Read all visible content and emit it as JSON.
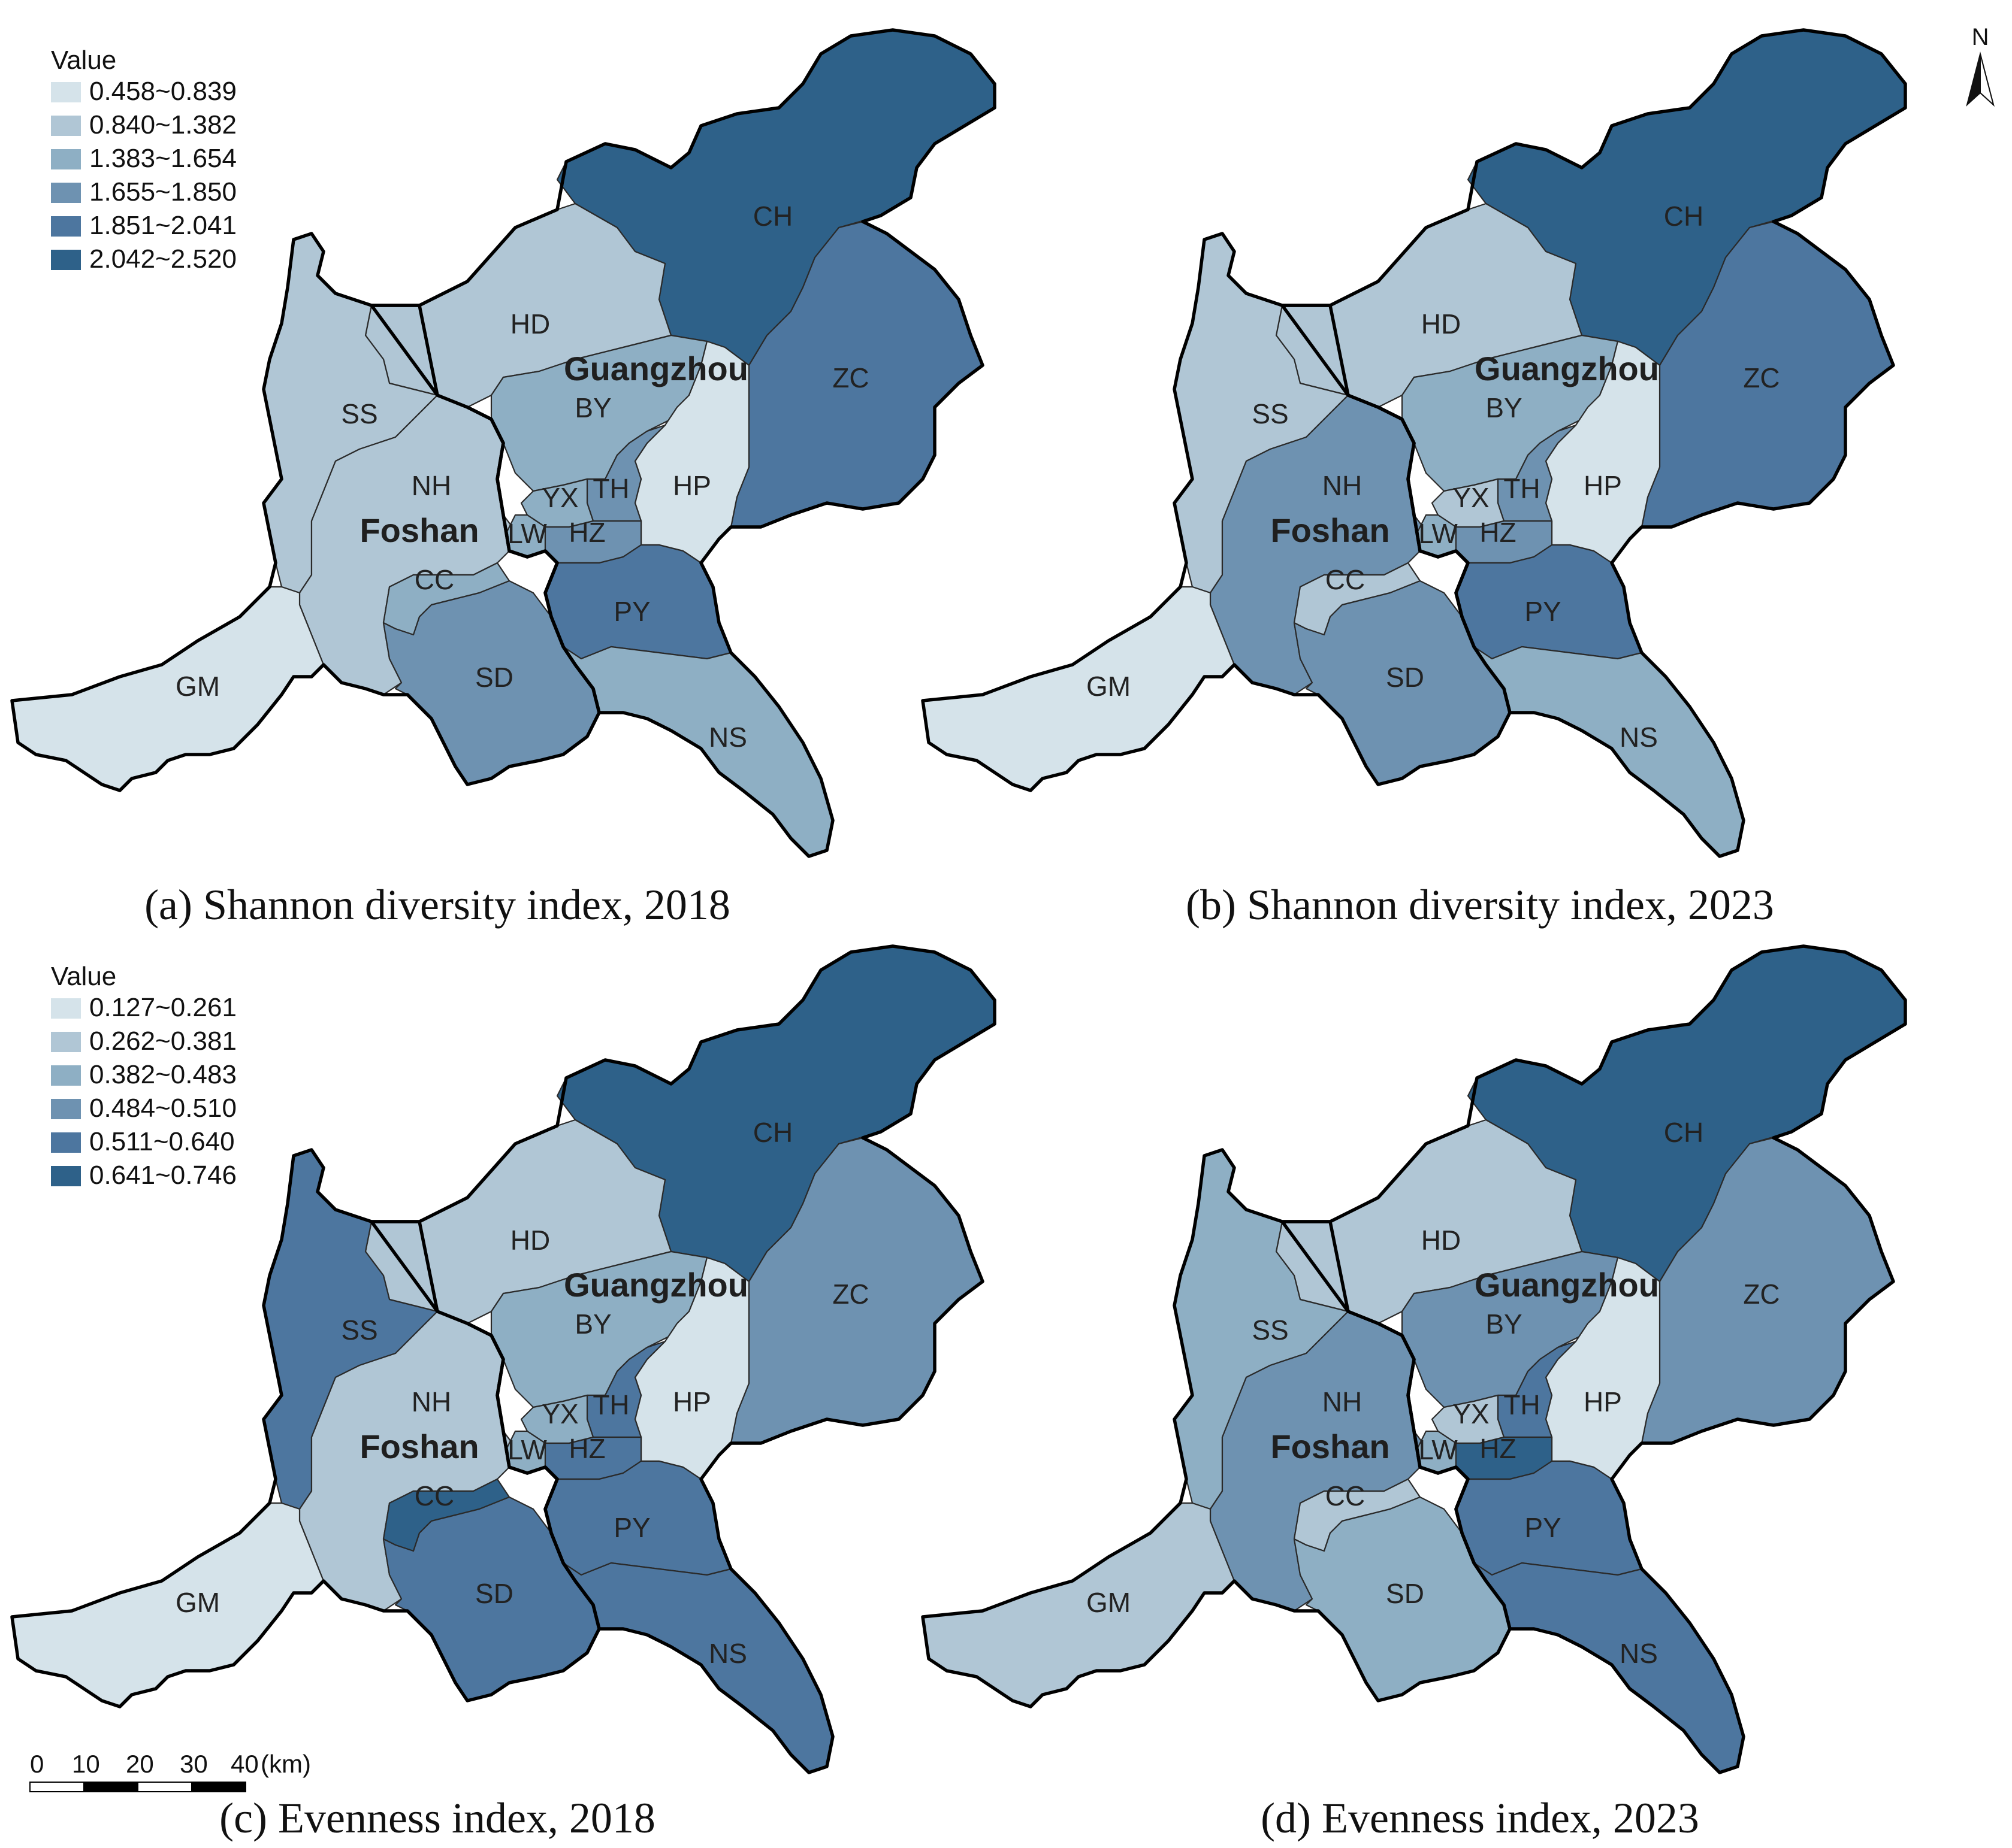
{
  "palette": [
    "#d5e3ea",
    "#b0c6d5",
    "#8eafc4",
    "#6e92b1",
    "#4d769f",
    "#2e6189"
  ],
  "legends": [
    {
      "title": "Value",
      "ranges": [
        "0.458~0.839",
        "0.840~1.382",
        "1.383~1.654",
        "1.655~1.850",
        "1.851~2.041",
        "2.042~2.520"
      ]
    },
    {
      "title": "Value",
      "ranges": [
        "0.127~0.261",
        "0.262~0.381",
        "0.382~0.483",
        "0.484~0.510",
        "0.511~0.640",
        "0.641~0.746"
      ]
    }
  ],
  "city_labels": {
    "guangzhou": "Guangzhou",
    "foshan": "Foshan"
  },
  "district_labels": {
    "CH": "CH",
    "ZC": "ZC",
    "HD": "HD",
    "BY": "BY",
    "HP": "HP",
    "TH": "TH",
    "YX": "YX",
    "LW": "LW",
    "HZ": "HZ",
    "PY": "PY",
    "NS": "NS",
    "SS": "SS",
    "NH": "NH",
    "CC": "CC",
    "SD": "SD",
    "GM": "GM"
  },
  "panels": [
    {
      "caption": "(a) Shannon diversity index, 2018",
      "classes": {
        "CH": 5,
        "ZC": 4,
        "HD": 1,
        "BY": 2,
        "HP": 0,
        "TH": 3,
        "YX": 2,
        "LW": 2,
        "HZ": 3,
        "PY": 4,
        "NS": 2,
        "SS": 1,
        "NH": 1,
        "CC": 2,
        "SD": 3,
        "GM": 0
      }
    },
    {
      "caption": "(b) Shannon diversity index, 2023",
      "classes": {
        "CH": 5,
        "ZC": 4,
        "HD": 1,
        "BY": 2,
        "HP": 0,
        "TH": 3,
        "YX": 1,
        "LW": 2,
        "HZ": 3,
        "PY": 4,
        "NS": 2,
        "SS": 1,
        "NH": 3,
        "CC": 1,
        "SD": 3,
        "GM": 0
      }
    },
    {
      "caption": "(c) Evenness index, 2018",
      "classes": {
        "CH": 5,
        "ZC": 3,
        "HD": 1,
        "BY": 2,
        "HP": 0,
        "TH": 4,
        "YX": 2,
        "LW": 2,
        "HZ": 4,
        "PY": 4,
        "NS": 4,
        "SS": 4,
        "NH": 1,
        "CC": 5,
        "SD": 4,
        "GM": 0
      }
    },
    {
      "caption": "(d) Evenness index, 2023",
      "classes": {
        "CH": 5,
        "ZC": 3,
        "HD": 1,
        "BY": 3,
        "HP": 0,
        "TH": 4,
        "YX": 1,
        "LW": 2,
        "HZ": 5,
        "PY": 4,
        "NS": 4,
        "SS": 2,
        "NH": 3,
        "CC": 1,
        "SD": 2,
        "GM": 1
      }
    }
  ],
  "scale_bar": {
    "ticks": [
      "0",
      "10",
      "20",
      "30",
      "40"
    ],
    "unit": "(km)"
  },
  "north_arrow": {
    "label": "N"
  }
}
